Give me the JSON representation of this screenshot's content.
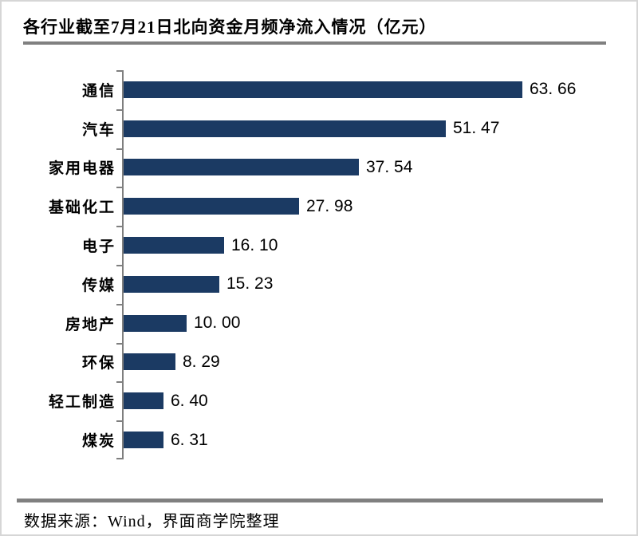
{
  "title": "各行业截至7月21日北向资金月频净流入情况（亿元）",
  "source": "数据来源：Wind，界面商学院整理",
  "colors": {
    "bar": "#1b3a63",
    "axis": "#7f7f7f",
    "rule": "#808080",
    "frame_border": "#d6d6d6",
    "text": "#000000",
    "background": "#ffffff"
  },
  "chart_data": {
    "type": "bar",
    "orientation": "horizontal",
    "title": "各行业截至7月21日北向资金月频净流入情况（亿元）",
    "unit": "亿元",
    "categories": [
      "通信",
      "汽车",
      "家用电器",
      "基础化工",
      "电子",
      "传媒",
      "房地产",
      "环保",
      "轻工制造",
      "煤炭"
    ],
    "values": [
      63.66,
      51.47,
      37.54,
      27.98,
      16.1,
      15.23,
      10.0,
      8.29,
      6.4,
      6.31
    ],
    "value_labels": [
      "63. 66",
      "51. 47",
      "37. 54",
      "27. 98",
      "16. 10",
      "15. 23",
      "10. 00",
      "8. 29",
      "6. 40",
      "6. 31"
    ],
    "xlim": [
      0,
      65
    ],
    "grid": false,
    "legend": null,
    "data_labels": "outside-end",
    "source_note": "数据来源：Wind，界面商学院整理"
  }
}
